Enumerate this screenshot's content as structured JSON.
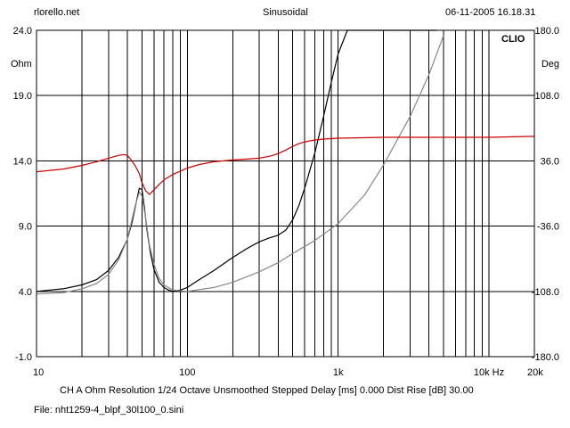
{
  "header": {
    "site": "rlorello.net",
    "title": "Sinusoidal",
    "datetime": "06-11-2005 16.18.31"
  },
  "footer": {
    "settings": "CH A   Ohm   Resolution 1/24 Octave   Unsmoothed   Stepped     Delay [ms] 0.000   Dist Rise [dB] 30.00",
    "file": "File: nht1259-4_blpf_30l100_0.sini"
  },
  "chart_data": {
    "type": "line",
    "brand": "CLIO",
    "x_scale": "log",
    "xlim": [
      10,
      20000
    ],
    "x_ticks": [
      {
        "value": 10,
        "label": "10"
      },
      {
        "value": 100,
        "label": "100"
      },
      {
        "value": 1000,
        "label": "1k"
      },
      {
        "value": 10000,
        "label": "10k Hz"
      },
      {
        "value": 20000,
        "label": "20k"
      }
    ],
    "y_left": {
      "unit": "Ohm",
      "range": [
        -1.0,
        24.0
      ],
      "ticks": [
        "24.0",
        "19.0",
        "14.0",
        "9.0",
        "4.0",
        "-1.0"
      ]
    },
    "y_right": {
      "unit": "Deg",
      "range": [
        -180.0,
        180.0
      ],
      "ticks": [
        "180.0",
        "108.0",
        "36.0",
        "-36.0",
        "-108.0",
        "-180.0"
      ]
    },
    "grid": true,
    "series": [
      {
        "axis": "left",
        "color": "#000000",
        "x": [
          10,
          15,
          20,
          25,
          30,
          35,
          40,
          43,
          46,
          48,
          50,
          52,
          54,
          57,
          60,
          65,
          70,
          75,
          80,
          90,
          100,
          120,
          150,
          200,
          250,
          300,
          350,
          400,
          450,
          500,
          550,
          600,
          700,
          800,
          900,
          1000,
          1150,
          1300,
          1500,
          2000,
          3000,
          4000,
          4500
        ],
        "y": [
          4.0,
          4.2,
          4.5,
          4.9,
          5.6,
          6.6,
          8.0,
          9.3,
          10.9,
          11.9,
          11.8,
          10.4,
          8.7,
          6.9,
          5.7,
          4.7,
          4.3,
          4.1,
          4.0,
          4.1,
          4.3,
          4.9,
          5.6,
          6.6,
          7.3,
          7.8,
          8.1,
          8.3,
          8.7,
          9.5,
          10.6,
          11.9,
          14.6,
          17.4,
          20.0,
          22.2,
          24.0,
          24.0,
          24.0,
          24.0,
          24.0,
          24.0,
          24.0
        ]
      },
      {
        "axis": "left",
        "color": "#888888",
        "x": [
          10,
          15,
          20,
          25,
          30,
          35,
          40,
          45,
          48,
          50,
          53,
          56,
          60,
          65,
          70,
          80,
          100,
          150,
          200,
          300,
          400,
          500,
          700,
          1000,
          1500,
          2000,
          3000,
          4000,
          5000
        ],
        "y": [
          3.8,
          3.9,
          4.2,
          4.6,
          5.3,
          6.4,
          8.0,
          10.5,
          11.6,
          11.3,
          9.6,
          7.6,
          6.1,
          5.0,
          4.5,
          4.1,
          4.0,
          4.3,
          4.7,
          5.5,
          6.2,
          6.9,
          7.9,
          9.2,
          11.4,
          13.7,
          17.4,
          20.6,
          23.6
        ]
      },
      {
        "axis": "right",
        "color": "#cc0000",
        "x": [
          10,
          15,
          20,
          25,
          30,
          35,
          38,
          40,
          42,
          45,
          48,
          50,
          53,
          56,
          60,
          65,
          70,
          80,
          100,
          120,
          150,
          200,
          250,
          300,
          350,
          400,
          450,
          500,
          550,
          600,
          700,
          800,
          1000,
          2000,
          5000,
          10000,
          20000
        ],
        "y": [
          24,
          27,
          31,
          35,
          39,
          42,
          43,
          42,
          38,
          31,
          22,
          12,
          3,
          -1,
          4,
          10,
          15,
          21,
          28,
          32,
          35,
          37,
          38,
          39,
          41,
          44,
          48,
          52,
          55,
          57,
          59,
          60,
          61,
          62,
          62,
          62,
          63
        ]
      }
    ]
  }
}
